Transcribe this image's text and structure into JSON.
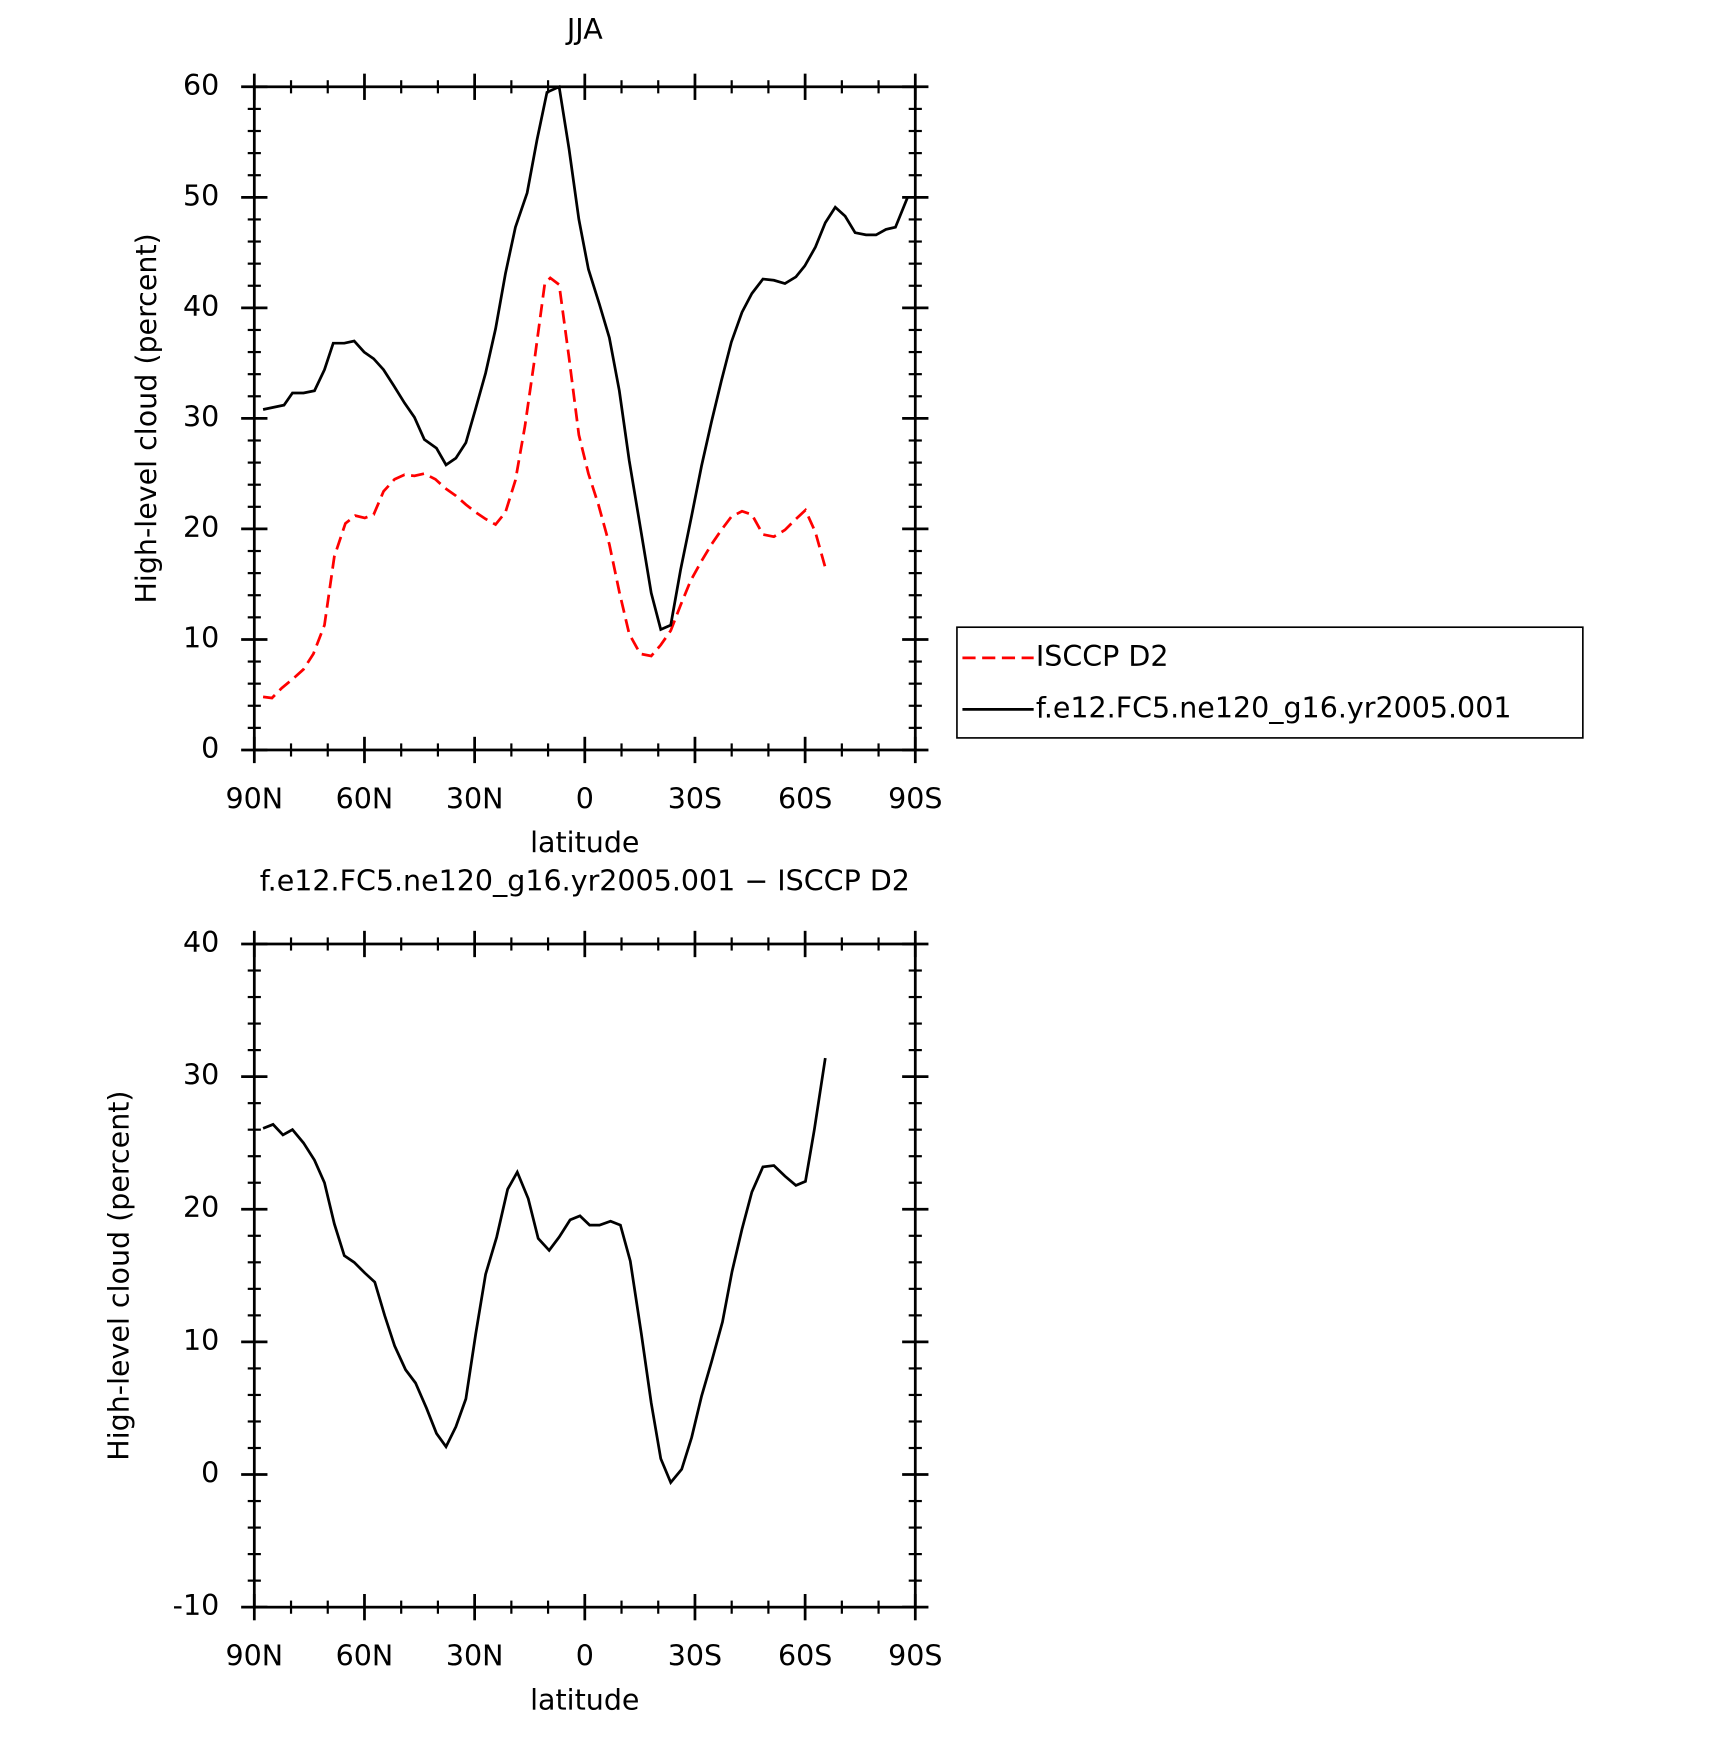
{
  "chart_data": [
    {
      "type": "line",
      "title": "JJA",
      "x_label": "latitude",
      "y_label": "High-level cloud (percent)",
      "xlim": [
        90,
        -90
      ],
      "ylim": [
        0,
        60
      ],
      "xticks": [
        {
          "value": 90,
          "label": "90N"
        },
        {
          "value": 60,
          "label": "60N"
        },
        {
          "value": 30,
          "label": "30N"
        },
        0,
        {
          "value": -30,
          "label": "30S"
        },
        {
          "value": -60,
          "label": "60S"
        },
        {
          "value": -90,
          "label": "90S"
        }
      ],
      "yticks": [
        0,
        10,
        20,
        30,
        40,
        50,
        60
      ],
      "xminorticks": [
        80,
        70,
        50,
        40,
        20,
        10,
        -10,
        -20,
        -40,
        -50,
        -70,
        -80
      ],
      "yminorticks": [
        2,
        4,
        6,
        8,
        12,
        14,
        16,
        18,
        22,
        24,
        26,
        28,
        32,
        34,
        36,
        38,
        42,
        44,
        46,
        48,
        52,
        54,
        56,
        58
      ],
      "legend": "outside-right",
      "series": [
        {
          "name": "ISCCP D2",
          "color": "#ff0000",
          "dash": true,
          "x": [
            87.6,
            85.2,
            82.5,
            79.6,
            76.6,
            73.9,
            70.9,
            68.2,
            65.2,
            62.5,
            59.9,
            57.5,
            54.8,
            51.8,
            49.1,
            46.4,
            43.7,
            40.7,
            38.1,
            35.1,
            32.4,
            29.7,
            27.0,
            24.3,
            21.6,
            18.9,
            16.3,
            13.6,
            10.9,
            9.4,
            7.0,
            4.3,
            1.6,
            -1.0,
            -3.7,
            -6.7,
            -9.4,
            -12.1,
            -15.1,
            -18.1,
            -20.7,
            -23.4,
            -26.1,
            -28.8,
            -31.8,
            -34.5,
            -37.2,
            -39.9,
            -42.8,
            -45.5,
            -48.5,
            -51.5,
            -54.5,
            -57.5,
            -60.1,
            -62.8,
            -65.5
          ],
          "values": [
            4.8,
            4.7,
            5.6,
            6.4,
            7.3,
            8.7,
            11.3,
            17.5,
            20.5,
            21.2,
            21.0,
            21.3,
            23.4,
            24.5,
            24.9,
            24.8,
            25.0,
            24.5,
            23.7,
            23.0,
            22.2,
            21.5,
            20.9,
            20.4,
            21.5,
            24.4,
            29.3,
            35.5,
            42.2,
            42.7,
            42.1,
            35.5,
            28.5,
            25.0,
            22.2,
            18.6,
            14.3,
            10.5,
            8.7,
            8.5,
            9.5,
            10.8,
            13.1,
            15.3,
            17.1,
            18.6,
            19.9,
            21.1,
            21.6,
            21.3,
            19.5,
            19.3,
            19.9,
            20.9,
            21.7,
            19.7,
            16.5
          ]
        },
        {
          "name": "f.e12.FC5.ne120_g16.yr2005.001",
          "color": "#000000",
          "dash": false,
          "x": [
            87.6,
            81.9,
            79.6,
            76.6,
            73.6,
            70.9,
            68.5,
            65.5,
            62.8,
            60.1,
            57.5,
            54.8,
            52.1,
            49.1,
            46.4,
            43.7,
            40.4,
            37.8,
            35.1,
            32.4,
            29.7,
            27.0,
            24.3,
            21.6,
            18.9,
            15.7,
            13.0,
            10.3,
            7.0,
            4.3,
            1.6,
            -1.0,
            -4.0,
            -6.7,
            -9.4,
            -12.1,
            -15.4,
            -18.1,
            -20.7,
            -23.4,
            -26.1,
            -29.1,
            -31.8,
            -34.5,
            -37.2,
            -39.9,
            -42.8,
            -45.5,
            -48.5,
            -51.5,
            -54.5,
            -57.5,
            -59.9,
            -62.8,
            -65.5,
            -68.2,
            -70.9,
            -73.6,
            -76.6,
            -79.3,
            -82.0,
            -84.6,
            -87.9
          ],
          "values": [
            30.8,
            31.2,
            32.3,
            32.3,
            32.5,
            34.4,
            36.8,
            36.8,
            37.0,
            36.0,
            35.4,
            34.4,
            33.0,
            31.4,
            30.1,
            28.1,
            27.3,
            25.8,
            26.4,
            27.8,
            30.9,
            34.1,
            38.1,
            43.1,
            47.3,
            50.4,
            55.2,
            59.5,
            60.0,
            54.4,
            48.0,
            43.5,
            40.3,
            37.3,
            32.5,
            26.2,
            19.6,
            14.2,
            10.9,
            11.3,
            16.3,
            21.2,
            25.7,
            29.7,
            33.4,
            36.9,
            39.6,
            41.3,
            42.6,
            42.5,
            42.2,
            42.8,
            43.8,
            45.5,
            47.7,
            49.1,
            48.3,
            46.8,
            46.6,
            46.6,
            47.1,
            47.3,
            50.0
          ]
        }
      ]
    },
    {
      "type": "line",
      "title": "f.e12.FC5.ne120_g16.yr2005.001 − ISCCP D2",
      "x_label": "latitude",
      "y_label": "High-level cloud (percent)",
      "xlim": [
        90,
        -90
      ],
      "ylim": [
        -10,
        40
      ],
      "xticks": [
        {
          "value": 90,
          "label": "90N"
        },
        {
          "value": 60,
          "label": "60N"
        },
        {
          "value": 30,
          "label": "30N"
        },
        0,
        {
          "value": -30,
          "label": "30S"
        },
        {
          "value": -60,
          "label": "60S"
        },
        {
          "value": -90,
          "label": "90S"
        }
      ],
      "yticks": [
        -10,
        0,
        10,
        20,
        30,
        40
      ],
      "xminorticks": [
        80,
        70,
        50,
        40,
        20,
        10,
        -10,
        -20,
        -40,
        -50,
        -70,
        -80
      ],
      "yminorticks": [
        -8,
        -6,
        -4,
        -2,
        2,
        4,
        6,
        8,
        12,
        14,
        16,
        18,
        22,
        24,
        26,
        28,
        32,
        34,
        36,
        38
      ],
      "color": "#000000",
      "x": [
        87.6,
        84.9,
        82.2,
        79.6,
        76.6,
        73.6,
        70.9,
        68.2,
        65.5,
        62.8,
        59.9,
        57.2,
        54.5,
        51.8,
        48.8,
        46.1,
        43.1,
        40.4,
        37.8,
        35.1,
        32.4,
        29.7,
        27.0,
        24.0,
        21.0,
        18.4,
        15.4,
        12.7,
        9.7,
        7.0,
        4.0,
        1.3,
        -1.3,
        -4.0,
        -7.0,
        -9.7,
        -12.4,
        -15.4,
        -18.1,
        -20.7,
        -23.4,
        -26.4,
        -29.1,
        -31.8,
        -34.5,
        -37.5,
        -40.1,
        -42.8,
        -45.5,
        -48.5,
        -51.5,
        -54.5,
        -57.5,
        -60.1,
        -62.5,
        -65.5
      ],
      "values": [
        26.1,
        26.4,
        25.6,
        26.0,
        25.0,
        23.7,
        22.0,
        18.9,
        16.5,
        16.0,
        15.2,
        14.5,
        12.0,
        9.7,
        7.9,
        6.9,
        5.0,
        3.1,
        2.1,
        3.6,
        5.7,
        10.6,
        15.1,
        17.9,
        21.5,
        22.8,
        20.8,
        17.8,
        16.9,
        17.9,
        19.2,
        19.5,
        18.8,
        18.8,
        19.1,
        18.8,
        16.1,
        10.6,
        5.4,
        1.2,
        -0.6,
        0.4,
        2.8,
        5.9,
        8.5,
        11.5,
        15.3,
        18.5,
        21.3,
        23.2,
        23.3,
        22.5,
        21.8,
        22.1,
        26.0,
        31.4
      ]
    }
  ]
}
